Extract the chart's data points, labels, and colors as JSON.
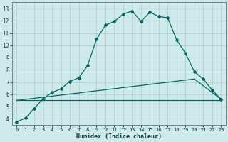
{
  "xlabel": "Humidex (Indice chaleur)",
  "background_color": "#ceeaea",
  "line_color": "#006666",
  "grid_color": "#aacccc",
  "spine_color": "#557777",
  "text_color": "#003333",
  "xlim": [
    -0.5,
    23.5
  ],
  "ylim": [
    3.5,
    13.5
  ],
  "yticks": [
    4,
    5,
    6,
    7,
    8,
    9,
    10,
    11,
    12,
    13
  ],
  "xticks": [
    0,
    1,
    2,
    3,
    4,
    5,
    6,
    7,
    8,
    9,
    10,
    11,
    12,
    13,
    14,
    15,
    16,
    17,
    18,
    19,
    20,
    21,
    22,
    23
  ],
  "curve_x": [
    0,
    1,
    2,
    3,
    4,
    5,
    6,
    7,
    8,
    9,
    10,
    11,
    12,
    13,
    14,
    15,
    16,
    17,
    18,
    19,
    20,
    21,
    22,
    23
  ],
  "curve_y": [
    3.75,
    4.05,
    4.85,
    5.65,
    6.15,
    6.45,
    7.05,
    7.35,
    8.35,
    10.5,
    11.65,
    11.95,
    12.55,
    12.8,
    11.95,
    12.7,
    12.35,
    12.25,
    10.45,
    9.35,
    7.85,
    7.25,
    6.35,
    5.6
  ],
  "line1_x": [
    0,
    20,
    23
  ],
  "line1_y": [
    5.5,
    7.25,
    5.6
  ],
  "line2_x": [
    0,
    23
  ],
  "line2_y": [
    5.5,
    5.5
  ],
  "line3_x": [
    0,
    20,
    23
  ],
  "line3_y": [
    5.5,
    7.0,
    5.6
  ]
}
